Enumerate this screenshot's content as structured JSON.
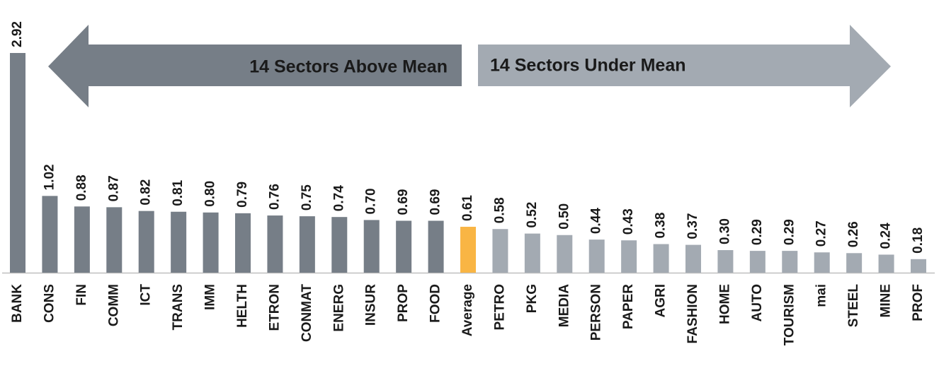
{
  "chart_data": {
    "type": "bar",
    "categories": [
      "BANK",
      "CONS",
      "FIN",
      "COMM",
      "ICT",
      "TRANS",
      "IMM",
      "HELTH",
      "ETRON",
      "CONMAT",
      "ENERG",
      "INSUR",
      "PROP",
      "FOOD",
      "Average",
      "PETRO",
      "PKG",
      "MEDIA",
      "PERSON",
      "PAPER",
      "AGRI",
      "FASHION",
      "HOME",
      "AUTO",
      "TOURISM",
      "mai",
      "STEEL",
      "MINE",
      "PROF"
    ],
    "values": [
      2.92,
      1.02,
      0.88,
      0.87,
      0.82,
      0.81,
      0.8,
      0.79,
      0.76,
      0.75,
      0.74,
      0.7,
      0.69,
      0.69,
      0.61,
      0.58,
      0.52,
      0.5,
      0.44,
      0.43,
      0.38,
      0.37,
      0.3,
      0.29,
      0.29,
      0.27,
      0.26,
      0.24,
      0.18
    ],
    "value_labels": [
      "2.92",
      "1.02",
      "0.88",
      "0.87",
      "0.82",
      "0.81",
      "0.80",
      "0.79",
      "0.76",
      "0.75",
      "0.74",
      "0.70",
      "0.69",
      "0.69",
      "0.61",
      "0.58",
      "0.52",
      "0.50",
      "0.44",
      "0.43",
      "0.38",
      "0.37",
      "0.30",
      "0.29",
      "0.29",
      "0.27",
      "0.26",
      "0.24",
      "0.18"
    ],
    "colors": [
      "#767e87",
      "#767e87",
      "#767e87",
      "#767e87",
      "#767e87",
      "#767e87",
      "#767e87",
      "#767e87",
      "#767e87",
      "#767e87",
      "#767e87",
      "#767e87",
      "#767e87",
      "#767e87",
      "#f9b544",
      "#a3aab2",
      "#a3aab2",
      "#a3aab2",
      "#a3aab2",
      "#a3aab2",
      "#a3aab2",
      "#a3aab2",
      "#a3aab2",
      "#a3aab2",
      "#a3aab2",
      "#a3aab2",
      "#a3aab2",
      "#a3aab2",
      "#a3aab2"
    ],
    "annotations": [
      "14 Sectors Above Mean",
      "14 Sectors Under Mean"
    ]
  }
}
